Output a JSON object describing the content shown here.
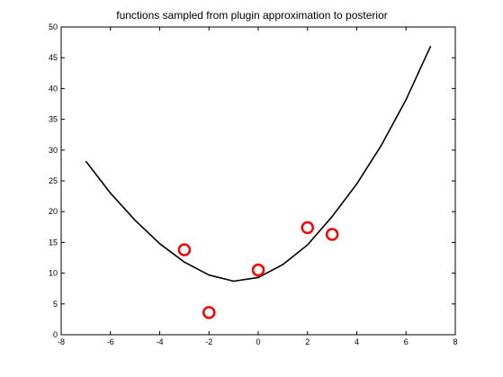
{
  "chart_data": {
    "type": "scatter",
    "title": "functions sampled from plugin approximation to posterior",
    "xlim": [
      -8,
      8
    ],
    "ylim": [
      0,
      50
    ],
    "xticks": [
      -8,
      -6,
      -4,
      -2,
      0,
      2,
      4,
      6,
      8
    ],
    "yticks": [
      0,
      5,
      10,
      15,
      20,
      25,
      30,
      35,
      40,
      45,
      50
    ],
    "grid": false,
    "series": [
      {
        "type": "line",
        "color": "#000000",
        "x": [
          -7,
          -6,
          -5,
          -4,
          -3,
          -2,
          -1,
          0,
          1,
          2,
          3,
          4,
          5,
          6,
          7
        ],
        "y": [
          28.2,
          23.0,
          18.6,
          14.8,
          11.8,
          9.7,
          8.7,
          9.3,
          11.4,
          14.6,
          19.2,
          24.5,
          30.8,
          38.2,
          46.9
        ]
      },
      {
        "type": "scatter",
        "marker": "circle",
        "color": "#ff0000",
        "x": [
          -3,
          -2,
          0,
          2,
          3
        ],
        "y": [
          13.8,
          3.6,
          10.5,
          17.4,
          16.3
        ]
      }
    ]
  }
}
